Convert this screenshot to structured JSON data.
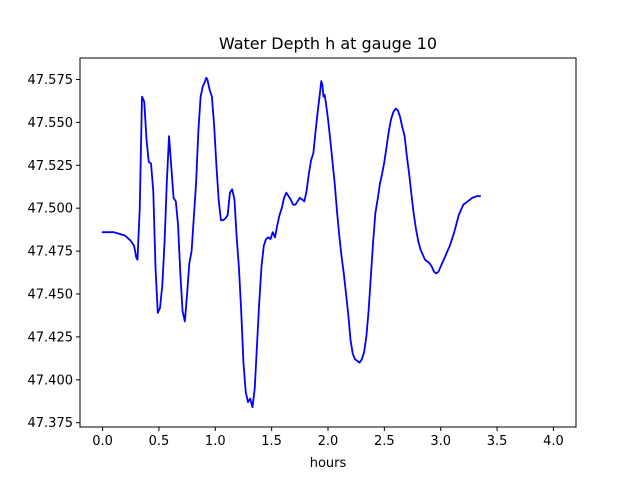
{
  "chart_data": {
    "type": "line",
    "title": "Water Depth h at gauge 10",
    "xlabel": "hours",
    "ylabel": "",
    "xlim": [
      -0.2,
      4.2
    ],
    "ylim": [
      47.3725,
      47.5875
    ],
    "x_ticks": [
      0.0,
      0.5,
      1.0,
      1.5,
      2.0,
      2.5,
      3.0,
      3.5,
      4.0
    ],
    "x_tick_labels": [
      "0.0",
      "0.5",
      "1.0",
      "1.5",
      "2.0",
      "2.5",
      "3.0",
      "3.5",
      "4.0"
    ],
    "y_ticks": [
      47.375,
      47.4,
      47.425,
      47.45,
      47.475,
      47.5,
      47.525,
      47.55,
      47.575
    ],
    "y_tick_labels": [
      "47.375",
      "47.400",
      "47.425",
      "47.450",
      "47.475",
      "47.500",
      "47.525",
      "47.550",
      "47.575"
    ],
    "grid": false,
    "legend": "none",
    "series": [
      {
        "color": "#0000ff",
        "points": [
          [
            0.0,
            47.486
          ],
          [
            0.05,
            47.486
          ],
          [
            0.1,
            47.486
          ],
          [
            0.15,
            47.485
          ],
          [
            0.2,
            47.484
          ],
          [
            0.25,
            47.481
          ],
          [
            0.28,
            47.478
          ],
          [
            0.3,
            47.471
          ],
          [
            0.31,
            47.47
          ],
          [
            0.33,
            47.5
          ],
          [
            0.35,
            47.565
          ],
          [
            0.37,
            47.562
          ],
          [
            0.39,
            47.54
          ],
          [
            0.41,
            47.527
          ],
          [
            0.43,
            47.526
          ],
          [
            0.45,
            47.51
          ],
          [
            0.47,
            47.465
          ],
          [
            0.49,
            47.439
          ],
          [
            0.51,
            47.442
          ],
          [
            0.53,
            47.455
          ],
          [
            0.55,
            47.48
          ],
          [
            0.57,
            47.515
          ],
          [
            0.59,
            47.542
          ],
          [
            0.61,
            47.524
          ],
          [
            0.63,
            47.506
          ],
          [
            0.65,
            47.504
          ],
          [
            0.67,
            47.49
          ],
          [
            0.69,
            47.462
          ],
          [
            0.71,
            47.44
          ],
          [
            0.73,
            47.434
          ],
          [
            0.75,
            47.45
          ],
          [
            0.77,
            47.468
          ],
          [
            0.79,
            47.475
          ],
          [
            0.81,
            47.495
          ],
          [
            0.83,
            47.515
          ],
          [
            0.85,
            47.545
          ],
          [
            0.87,
            47.565
          ],
          [
            0.89,
            47.571
          ],
          [
            0.91,
            47.574
          ],
          [
            0.92,
            47.576
          ],
          [
            0.93,
            47.575
          ],
          [
            0.95,
            47.569
          ],
          [
            0.97,
            47.565
          ],
          [
            0.99,
            47.548
          ],
          [
            1.01,
            47.525
          ],
          [
            1.03,
            47.505
          ],
          [
            1.05,
            47.493
          ],
          [
            1.07,
            47.493
          ],
          [
            1.09,
            47.494
          ],
          [
            1.11,
            47.496
          ],
          [
            1.13,
            47.509
          ],
          [
            1.15,
            47.511
          ],
          [
            1.17,
            47.505
          ],
          [
            1.19,
            47.483
          ],
          [
            1.21,
            47.465
          ],
          [
            1.23,
            47.44
          ],
          [
            1.25,
            47.41
          ],
          [
            1.27,
            47.393
          ],
          [
            1.29,
            47.387
          ],
          [
            1.31,
            47.389
          ],
          [
            1.33,
            47.384
          ],
          [
            1.35,
            47.395
          ],
          [
            1.37,
            47.42
          ],
          [
            1.39,
            47.445
          ],
          [
            1.41,
            47.466
          ],
          [
            1.43,
            47.478
          ],
          [
            1.45,
            47.482
          ],
          [
            1.47,
            47.483
          ],
          [
            1.49,
            47.482
          ],
          [
            1.51,
            47.486
          ],
          [
            1.53,
            47.483
          ],
          [
            1.55,
            47.49
          ],
          [
            1.57,
            47.496
          ],
          [
            1.59,
            47.5
          ],
          [
            1.61,
            47.506
          ],
          [
            1.63,
            47.509
          ],
          [
            1.65,
            47.507
          ],
          [
            1.67,
            47.505
          ],
          [
            1.69,
            47.502
          ],
          [
            1.71,
            47.502
          ],
          [
            1.73,
            47.504
          ],
          [
            1.75,
            47.506
          ],
          [
            1.77,
            47.505
          ],
          [
            1.79,
            47.504
          ],
          [
            1.81,
            47.51
          ],
          [
            1.83,
            47.52
          ],
          [
            1.85,
            47.528
          ],
          [
            1.87,
            47.532
          ],
          [
            1.89,
            47.545
          ],
          [
            1.91,
            47.557
          ],
          [
            1.93,
            47.568
          ],
          [
            1.94,
            47.574
          ],
          [
            1.95,
            47.572
          ],
          [
            1.96,
            47.565
          ],
          [
            1.97,
            47.566
          ],
          [
            1.98,
            47.562
          ],
          [
            2.0,
            47.552
          ],
          [
            2.02,
            47.54
          ],
          [
            2.04,
            47.527
          ],
          [
            2.06,
            47.514
          ],
          [
            2.08,
            47.498
          ],
          [
            2.1,
            47.484
          ],
          [
            2.12,
            47.472
          ],
          [
            2.14,
            47.462
          ],
          [
            2.16,
            47.45
          ],
          [
            2.18,
            47.438
          ],
          [
            2.2,
            47.423
          ],
          [
            2.22,
            47.415
          ],
          [
            2.24,
            47.412
          ],
          [
            2.26,
            47.411
          ],
          [
            2.28,
            47.41
          ],
          [
            2.3,
            47.412
          ],
          [
            2.32,
            47.416
          ],
          [
            2.34,
            47.425
          ],
          [
            2.36,
            47.44
          ],
          [
            2.38,
            47.46
          ],
          [
            2.4,
            47.48
          ],
          [
            2.42,
            47.497
          ],
          [
            2.44,
            47.505
          ],
          [
            2.46,
            47.514
          ],
          [
            2.48,
            47.52
          ],
          [
            2.5,
            47.527
          ],
          [
            2.52,
            47.536
          ],
          [
            2.54,
            47.545
          ],
          [
            2.56,
            47.552
          ],
          [
            2.58,
            47.556
          ],
          [
            2.6,
            47.558
          ],
          [
            2.62,
            47.557
          ],
          [
            2.64,
            47.553
          ],
          [
            2.66,
            47.547
          ],
          [
            2.68,
            47.542
          ],
          [
            2.7,
            47.53
          ],
          [
            2.72,
            47.52
          ],
          [
            2.74,
            47.508
          ],
          [
            2.76,
            47.497
          ],
          [
            2.78,
            47.488
          ],
          [
            2.8,
            47.481
          ],
          [
            2.82,
            47.476
          ],
          [
            2.84,
            47.473
          ],
          [
            2.86,
            47.47
          ],
          [
            2.88,
            47.469
          ],
          [
            2.9,
            47.468
          ],
          [
            2.92,
            47.466
          ],
          [
            2.94,
            47.463
          ],
          [
            2.96,
            47.462
          ],
          [
            2.98,
            47.463
          ],
          [
            3.0,
            47.466
          ],
          [
            3.04,
            47.472
          ],
          [
            3.08,
            47.478
          ],
          [
            3.12,
            47.486
          ],
          [
            3.16,
            47.496
          ],
          [
            3.2,
            47.502
          ],
          [
            3.24,
            47.504
          ],
          [
            3.28,
            47.506
          ],
          [
            3.32,
            47.507
          ],
          [
            3.35,
            47.507
          ]
        ]
      }
    ]
  }
}
